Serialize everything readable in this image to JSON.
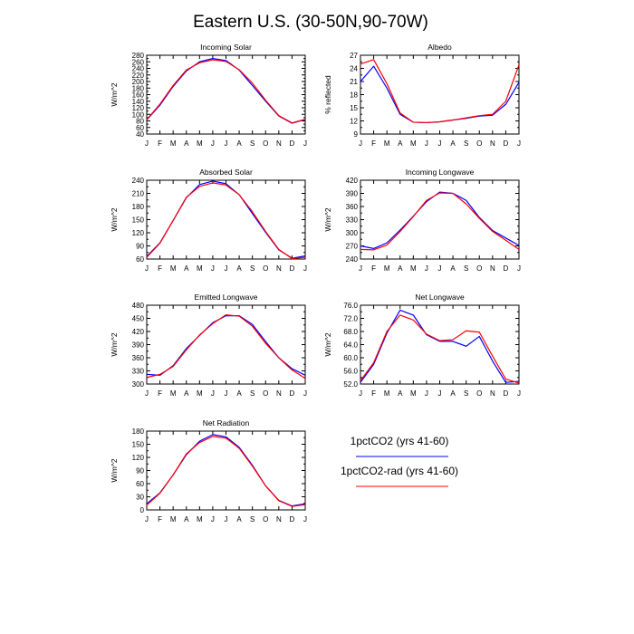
{
  "title": "Eastern U.S. (30-50N,90-70W)",
  "colors": {
    "series1": "#0000ff",
    "series2": "#ff0000",
    "axis": "#000000"
  },
  "legend": {
    "placement": "bottom-right",
    "items": [
      {
        "label": "1pctCO2 (yrs 41-60)",
        "color": "#0000ff"
      },
      {
        "label": "1pctCO2-rad (yrs 41-60)",
        "color": "#ff0000"
      }
    ]
  },
  "chart_data": [
    {
      "type": "line",
      "title": "Incoming Solar",
      "ylabel": "W/m^2",
      "categories": [
        "J",
        "F",
        "M",
        "A",
        "M",
        "J",
        "J",
        "A",
        "S",
        "O",
        "N",
        "D",
        "J"
      ],
      "ylim": [
        40,
        280
      ],
      "yticks": [
        "40",
        "60",
        "80",
        "100",
        "120",
        "140",
        "160",
        "180",
        "200",
        "220",
        "240",
        "260",
        "280"
      ],
      "series": [
        {
          "name": "1pctCO2 (yrs 41-60)",
          "color": "#0000ff",
          "values": [
            83,
            128,
            185,
            232,
            260,
            270,
            264,
            235,
            188,
            140,
            95,
            73,
            84
          ]
        },
        {
          "name": "1pctCO2-rad (yrs 41-60)",
          "color": "#ff0000",
          "values": [
            84,
            131,
            188,
            235,
            257,
            266,
            261,
            236,
            195,
            143,
            96,
            74,
            85
          ]
        }
      ]
    },
    {
      "type": "line",
      "title": "Albedo",
      "ylabel": "% reflected",
      "categories": [
        "J",
        "F",
        "M",
        "A",
        "M",
        "J",
        "J",
        "A",
        "S",
        "O",
        "N",
        "D",
        "J"
      ],
      "ylim": [
        9,
        27
      ],
      "yticks": [
        "9",
        "12",
        "15",
        "18",
        "21",
        "24",
        "27"
      ],
      "series": [
        {
          "name": "1pctCO2 (yrs 41-60)",
          "color": "#0000ff",
          "values": [
            21,
            24.5,
            19.5,
            13.5,
            11.7,
            11.6,
            11.8,
            12.2,
            12.6,
            13.1,
            13.3,
            15.8,
            20.8
          ]
        },
        {
          "name": "1pctCO2-rad (yrs 41-60)",
          "color": "#ff0000",
          "values": [
            25,
            26,
            20.5,
            13.8,
            11.7,
            11.6,
            11.8,
            12.2,
            12.7,
            13.2,
            13.5,
            16.5,
            24.8
          ]
        }
      ]
    },
    {
      "type": "line",
      "title": "Absorbed Solar",
      "ylabel": "W/m^2",
      "categories": [
        "J",
        "F",
        "M",
        "A",
        "M",
        "J",
        "J",
        "A",
        "S",
        "O",
        "N",
        "D",
        "J"
      ],
      "ylim": [
        60,
        240
      ],
      "yticks": [
        "60",
        "90",
        "120",
        "150",
        "180",
        "210",
        "240"
      ],
      "series": [
        {
          "name": "1pctCO2 (yrs 41-60)",
          "color": "#0000ff",
          "values": [
            66,
            97,
            148,
            200,
            230,
            238,
            232,
            207,
            164,
            121,
            81,
            62,
            67
          ]
        },
        {
          "name": "1pctCO2-rad (yrs 41-60)",
          "color": "#ff0000",
          "values": [
            64,
            96,
            148,
            201,
            226,
            234,
            229,
            207,
            168,
            123,
            82,
            61,
            64
          ]
        }
      ]
    },
    {
      "type": "line",
      "title": "Incoming Longwave",
      "ylabel": "W/m^2",
      "categories": [
        "J",
        "F",
        "M",
        "A",
        "M",
        "J",
        "J",
        "A",
        "S",
        "O",
        "N",
        "D",
        "J"
      ],
      "ylim": [
        240,
        420
      ],
      "yticks": [
        "240",
        "270",
        "300",
        "330",
        "360",
        "390",
        "420"
      ],
      "series": [
        {
          "name": "1pctCO2 (yrs 41-60)",
          "color": "#0000ff",
          "values": [
            270,
            264,
            277,
            306,
            338,
            371,
            393,
            390,
            374,
            335,
            305,
            288,
            271
          ]
        },
        {
          "name": "1pctCO2-rad (yrs 41-60)",
          "color": "#ff0000",
          "values": [
            262,
            261,
            272,
            303,
            337,
            374,
            391,
            390,
            366,
            333,
            303,
            283,
            262
          ]
        }
      ]
    },
    {
      "type": "line",
      "title": "Emitted Longwave",
      "ylabel": "W/m^2",
      "categories": [
        "J",
        "F",
        "M",
        "A",
        "M",
        "J",
        "J",
        "A",
        "S",
        "O",
        "N",
        "D",
        "J"
      ],
      "ylim": [
        300,
        480
      ],
      "yticks": [
        "300",
        "330",
        "360",
        "390",
        "420",
        "450",
        "480"
      ],
      "series": [
        {
          "name": "1pctCO2 (yrs 41-60)",
          "color": "#0000ff",
          "values": [
            322,
            320,
            342,
            381,
            411,
            440,
            456,
            456,
            436,
            397,
            360,
            335,
            320
          ]
        },
        {
          "name": "1pctCO2-rad (yrs 41-60)",
          "color": "#ff0000",
          "values": [
            315,
            322,
            340,
            378,
            412,
            438,
            458,
            455,
            432,
            393,
            360,
            332,
            313
          ]
        }
      ]
    },
    {
      "type": "line",
      "title": "Net Longwave",
      "ylabel": "W/m^2",
      "categories": [
        "J",
        "F",
        "M",
        "A",
        "M",
        "J",
        "J",
        "A",
        "S",
        "O",
        "N",
        "D",
        "J"
      ],
      "ylim": [
        52,
        76
      ],
      "yticks": [
        "52.0",
        "56.0",
        "60.0",
        "64.0",
        "68.0",
        "72.0",
        "76.0"
      ],
      "series": [
        {
          "name": "1pctCO2 (yrs 41-60)",
          "color": "#0000ff",
          "values": [
            52.5,
            58,
            67.5,
            74.5,
            73,
            67,
            65,
            65,
            63.5,
            66.5,
            59,
            52.5,
            52.8
          ]
        },
        {
          "name": "1pctCO2-rad (yrs 41-60)",
          "color": "#ff0000",
          "values": [
            53,
            58.5,
            68,
            73,
            71.5,
            67.2,
            65.2,
            65.5,
            68.2,
            67.8,
            60.5,
            53.5,
            52.3
          ]
        }
      ]
    },
    {
      "type": "line",
      "title": "Net Radiation",
      "ylabel": "W/m^2",
      "categories": [
        "J",
        "F",
        "M",
        "A",
        "M",
        "J",
        "J",
        "A",
        "S",
        "O",
        "N",
        "D",
        "J"
      ],
      "ylim": [
        0,
        180
      ],
      "yticks": [
        "0",
        "30",
        "60",
        "90",
        "120",
        "150",
        "180"
      ],
      "series": [
        {
          "name": "1pctCO2 (yrs 41-60)",
          "color": "#0000ff",
          "values": [
            14,
            39,
            80,
            126,
            157,
            172,
            167,
            143,
            102,
            55,
            22,
            9,
            14
          ]
        },
        {
          "name": "1pctCO2-rad (yrs 41-60)",
          "color": "#ff0000",
          "values": [
            11,
            38,
            80,
            128,
            154,
            168,
            164,
            141,
            100,
            55,
            21,
            8,
            12
          ]
        }
      ]
    }
  ]
}
